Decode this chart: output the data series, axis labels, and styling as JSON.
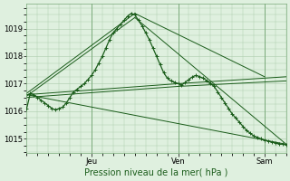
{
  "background_color": "#dff0df",
  "plot_bg_color": "#dff0df",
  "grid_color": "#aacaaa",
  "line_color": "#1a5c1a",
  "xlabel": "Pression niveau de la mer( hPa )",
  "ylim": [
    1014.5,
    1019.9
  ],
  "yticks": [
    1015,
    1016,
    1017,
    1018,
    1019
  ],
  "xlim": [
    0,
    144
  ],
  "day_labels": [
    "Jeu",
    "Ven",
    "Sam"
  ],
  "day_positions": [
    36,
    84,
    132
  ],
  "main_series_x": [
    0,
    2,
    4,
    6,
    8,
    10,
    12,
    14,
    16,
    18,
    20,
    22,
    24,
    26,
    28,
    30,
    32,
    34,
    36,
    38,
    40,
    42,
    44,
    46,
    48,
    50,
    52,
    54,
    56,
    58,
    60,
    62,
    64,
    66,
    68,
    70,
    72,
    74,
    76,
    78,
    80,
    82,
    84,
    86,
    88,
    90,
    92,
    94,
    96,
    98,
    100,
    102,
    104,
    106,
    108,
    110,
    112,
    114,
    116,
    118,
    120,
    122,
    124,
    126,
    128,
    130,
    132,
    134,
    136,
    138,
    140,
    142,
    144
  ],
  "main_series_y": [
    1016.1,
    1016.65,
    1016.6,
    1016.5,
    1016.4,
    1016.3,
    1016.2,
    1016.1,
    1016.05,
    1016.1,
    1016.15,
    1016.3,
    1016.5,
    1016.7,
    1016.8,
    1016.9,
    1017.0,
    1017.15,
    1017.3,
    1017.5,
    1017.75,
    1018.0,
    1018.3,
    1018.6,
    1018.85,
    1019.0,
    1019.15,
    1019.3,
    1019.45,
    1019.55,
    1019.5,
    1019.3,
    1019.1,
    1018.85,
    1018.6,
    1018.3,
    1018.0,
    1017.7,
    1017.4,
    1017.2,
    1017.1,
    1017.05,
    1017.0,
    1016.95,
    1017.05,
    1017.15,
    1017.25,
    1017.3,
    1017.25,
    1017.2,
    1017.1,
    1017.0,
    1016.9,
    1016.7,
    1016.5,
    1016.3,
    1016.1,
    1015.9,
    1015.75,
    1015.6,
    1015.45,
    1015.3,
    1015.2,
    1015.1,
    1015.05,
    1015.0,
    1014.95,
    1014.92,
    1014.88,
    1014.85,
    1014.82,
    1014.8,
    1014.78
  ],
  "straight_lines": [
    {
      "x": [
        0,
        144
      ],
      "y": [
        1016.6,
        1014.8
      ]
    },
    {
      "x": [
        0,
        60
      ],
      "y": [
        1016.65,
        1019.55
      ]
    },
    {
      "x": [
        0,
        60
      ],
      "y": [
        1016.55,
        1019.4
      ]
    },
    {
      "x": [
        0,
        84
      ],
      "y": [
        1016.6,
        1017.0
      ]
    },
    {
      "x": [
        0,
        84
      ],
      "y": [
        1016.5,
        1016.9
      ]
    },
    {
      "x": [
        60,
        132
      ],
      "y": [
        1019.55,
        1017.25
      ]
    },
    {
      "x": [
        60,
        144
      ],
      "y": [
        1019.4,
        1014.8
      ]
    },
    {
      "x": [
        84,
        144
      ],
      "y": [
        1017.0,
        1017.25
      ]
    },
    {
      "x": [
        84,
        144
      ],
      "y": [
        1016.9,
        1017.1
      ]
    }
  ]
}
